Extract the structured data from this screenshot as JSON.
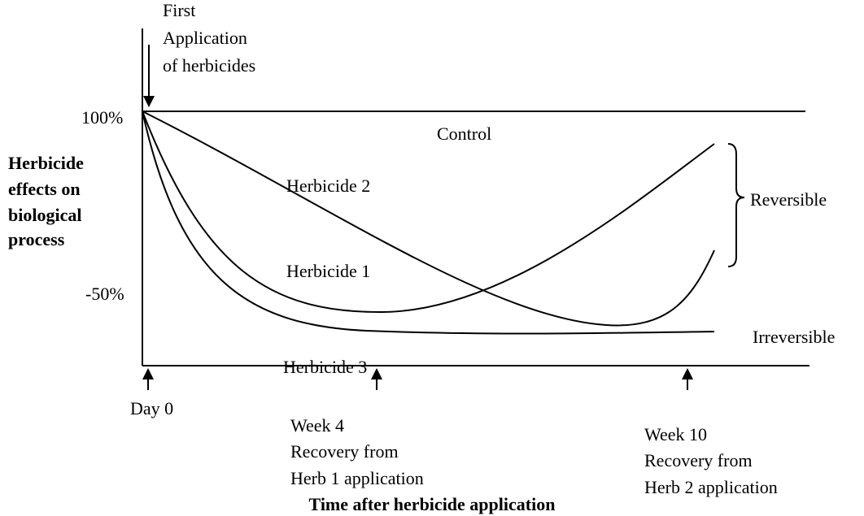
{
  "annotation": {
    "lines": [
      "First",
      "Application",
      "of herbicides"
    ]
  },
  "y_axis": {
    "label_lines": [
      "Herbicide",
      "effects on",
      "biological",
      "process"
    ],
    "ticks": [
      "100%",
      "-50%"
    ]
  },
  "curves": {
    "control": "Control",
    "herbicide_2": "Herbicide 2",
    "herbicide_1": "Herbicide 1",
    "herbicide_3": "Herbicide 3"
  },
  "groups": {
    "reversible": "Reversible",
    "irreversible": "Irreversible"
  },
  "x_axis": {
    "markers": [
      {
        "lines": [
          "Day 0"
        ]
      },
      {
        "lines": [
          "Week 4",
          "Recovery from",
          "Herb 1 application"
        ]
      },
      {
        "lines": [
          "Week 10",
          "Recovery from",
          "Herb 2 application"
        ]
      }
    ],
    "title": "Time after herbicide application"
  }
}
